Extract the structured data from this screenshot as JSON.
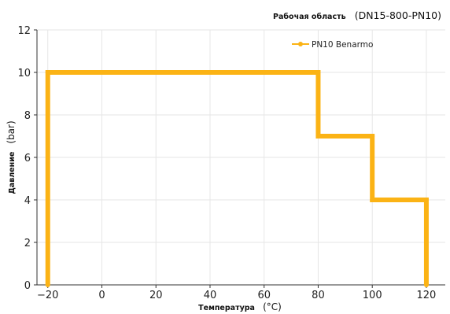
{
  "chart_data": {
    "type": "line",
    "title": {
      "bold_part": "Рабочая область",
      "normal_part": "(DN15-800-PN10)"
    },
    "xlabel": {
      "bold_part": "Температура",
      "normal_part": "(°C)"
    },
    "ylabel": {
      "bold_part": "Давление",
      "normal_part": "(bar)"
    },
    "xlim": [
      -24,
      127
    ],
    "ylim": [
      0,
      12
    ],
    "x_ticks": [
      -20,
      0,
      20,
      40,
      60,
      80,
      100,
      120
    ],
    "x_tick_labels": [
      "−20",
      "0",
      "20",
      "40",
      "60",
      "80",
      "100",
      "120"
    ],
    "y_ticks": [
      0,
      2,
      4,
      6,
      8,
      10,
      12
    ],
    "y_tick_labels": [
      "0",
      "2",
      "4",
      "6",
      "8",
      "10",
      "12"
    ],
    "grid": true,
    "legend_position": "top-right",
    "series": [
      {
        "name": "PN10 Benarmo",
        "color": "#fbb315",
        "x": [
          -20,
          -20,
          80,
          80,
          100,
          100,
          120,
          120
        ],
        "y": [
          0,
          10,
          10,
          7,
          7,
          4,
          4,
          0
        ]
      }
    ]
  }
}
